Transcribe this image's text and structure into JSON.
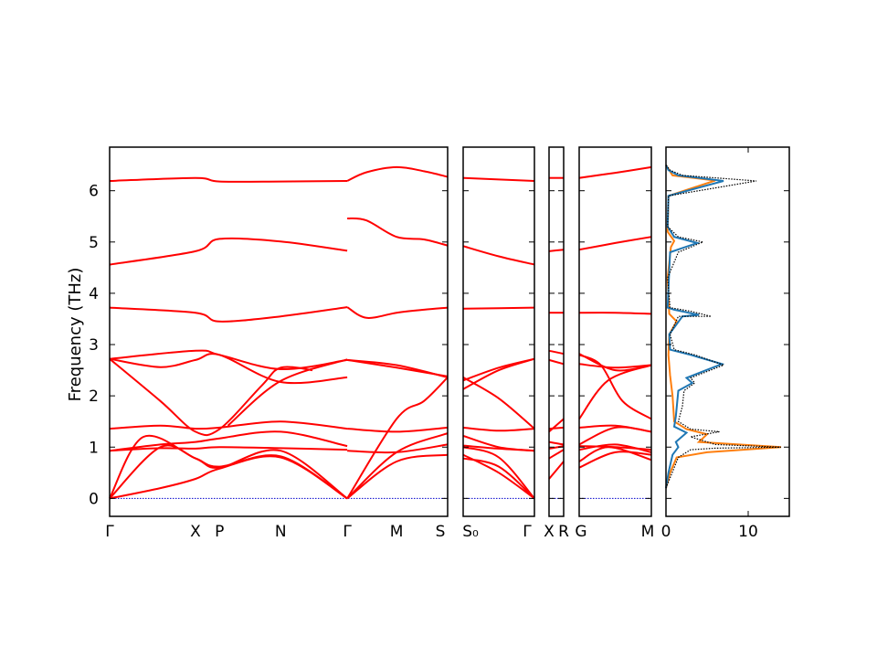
{
  "chart_data": {
    "type": "line",
    "ylabel": "Frequency (THz)",
    "ylim": [
      -0.35,
      6.85
    ],
    "yticks": [
      "0",
      "1",
      "2",
      "3",
      "4",
      "5",
      "6"
    ],
    "colors": {
      "bands": "#ff0000",
      "zero_line": "#0000cc",
      "dos_total": "#000000",
      "dos_a": "#1f77b4",
      "dos_b": "#ff7f0e"
    },
    "band_panels": [
      {
        "labels": [
          "Γ",
          "X",
          "P",
          "N",
          "Γ",
          "M",
          "S"
        ],
        "label_pos": [
          0,
          0.254,
          0.325,
          0.506,
          0.703,
          0.849,
          1
        ],
        "bands": [
          {
            "x": [
              0,
              0.254,
              0.325,
              0.506,
              0.703
            ],
            "y": [
              6.19,
              6.25,
              6.18,
              6.18,
              6.19
            ]
          },
          {
            "x": [
              0.703,
              0.76,
              0.849,
              0.93,
              1
            ],
            "y": [
              6.19,
              6.36,
              6.46,
              6.38,
              6.27
            ]
          },
          {
            "x": [
              0,
              0.254,
              0.325,
              0.506,
              0.703
            ],
            "y": [
              4.56,
              4.82,
              5.06,
              5.01,
              4.83
            ]
          },
          {
            "x": [
              0.703,
              0.76,
              0.849,
              0.93,
              1
            ],
            "y": [
              5.46,
              5.42,
              5.1,
              5.05,
              4.93
            ]
          },
          {
            "x": [
              0,
              0.254,
              0.325,
              0.506,
              0.703
            ],
            "y": [
              3.72,
              3.62,
              3.45,
              3.55,
              3.73
            ]
          },
          {
            "x": [
              0.703,
              0.76,
              0.849,
              0.93,
              1
            ],
            "y": [
              3.73,
              3.52,
              3.62,
              3.68,
              3.72
            ]
          },
          {
            "x": [
              0,
              0.254,
              0.325,
              0.506,
              0.703
            ],
            "y": [
              2.72,
              2.88,
              2.8,
              2.52,
              2.7
            ]
          },
          {
            "x": [
              0.703,
              0.849,
              1
            ],
            "y": [
              2.7,
              2.6,
              2.36
            ]
          },
          {
            "x": [
              0,
              0.15,
              0.254,
              0.325,
              0.506,
              0.703
            ],
            "y": [
              2.72,
              2.56,
              2.7,
              2.8,
              2.27,
              2.36
            ]
          },
          {
            "x": [
              0.703,
              0.849,
              1
            ],
            "y": [
              2.7,
              2.55,
              2.38
            ]
          },
          {
            "x": [
              0,
              0.15,
              0.254,
              0.325,
              0.45,
              0.506,
              0.6
            ],
            "y": [
              2.72,
              1.9,
              1.3,
              1.35,
              2.2,
              2.55,
              2.5
            ]
          },
          {
            "x": [
              0.35,
              0.506,
              0.703
            ],
            "y": [
              1.42,
              2.29,
              2.71
            ]
          },
          {
            "x": [
              0.703,
              0.849,
              0.93,
              1
            ],
            "y": [
              0.0,
              1.55,
              1.9,
              2.36
            ]
          },
          {
            "x": [
              0,
              0.15,
              0.254,
              0.325,
              0.506,
              0.703
            ],
            "y": [
              1.36,
              1.42,
              1.36,
              1.38,
              1.5,
              1.36
            ]
          },
          {
            "x": [
              0.703,
              0.849,
              1
            ],
            "y": [
              1.36,
              1.3,
              1.38
            ]
          },
          {
            "x": [
              0,
              0.15,
              0.254,
              0.325,
              0.506,
              0.703
            ],
            "y": [
              0.93,
              1.05,
              1.1,
              1.17,
              1.3,
              1.02
            ]
          },
          {
            "x": [
              0.703,
              0.849,
              1
            ],
            "y": [
              0.93,
              0.9,
              1.05
            ]
          },
          {
            "x": [
              0,
              0.15,
              0.254,
              0.325,
              0.506,
              0.703
            ],
            "y": [
              0.93,
              0.98,
              0.97,
              1.0,
              0.98,
              0.95
            ]
          },
          {
            "x": [
              0,
              0.1,
              0.254,
              0.325,
              0.506,
              0.703
            ],
            "y": [
              0.0,
              1.2,
              0.78,
              0.6,
              0.93,
              0.0
            ]
          },
          {
            "x": [
              0,
              0.15,
              0.254,
              0.325,
              0.506,
              0.703
            ],
            "y": [
              0.0,
              1.0,
              0.78,
              0.62,
              0.82,
              0.0
            ]
          },
          {
            "x": [
              0,
              0.15,
              0.254,
              0.325,
              0.506,
              0.703
            ],
            "y": [
              0.0,
              0.2,
              0.38,
              0.58,
              0.8,
              0.0
            ]
          },
          {
            "x": [
              0.703,
              0.849,
              1
            ],
            "y": [
              0.0,
              0.72,
              0.85
            ]
          },
          {
            "x": [
              0.703,
              0.849,
              1
            ],
            "y": [
              0.0,
              0.9,
              1.27
            ]
          }
        ]
      },
      {
        "labels": [
          "S₀",
          "Γ"
        ],
        "label_pos": [
          0,
          1
        ],
        "bands": [
          {
            "x": [
              0,
              1
            ],
            "y": [
              6.25,
              6.19
            ]
          },
          {
            "x": [
              0,
              0.5,
              1
            ],
            "y": [
              4.92,
              4.72,
              4.56
            ]
          },
          {
            "x": [
              0,
              1
            ],
            "y": [
              3.7,
              3.72
            ]
          },
          {
            "x": [
              0,
              0.5,
              1
            ],
            "y": [
              2.3,
              2.55,
              2.72
            ]
          },
          {
            "x": [
              0,
              0.5,
              1
            ],
            "y": [
              2.13,
              2.5,
              2.72
            ]
          },
          {
            "x": [
              0,
              0.5,
              1
            ],
            "y": [
              2.36,
              1.95,
              1.36
            ]
          },
          {
            "x": [
              0,
              0.5,
              1
            ],
            "y": [
              1.38,
              1.32,
              1.36
            ]
          },
          {
            "x": [
              0,
              0.5,
              1
            ],
            "y": [
              1.03,
              0.97,
              0.93
            ]
          },
          {
            "x": [
              0,
              0.5,
              1
            ],
            "y": [
              1.22,
              1.0,
              0.93
            ]
          },
          {
            "x": [
              0,
              0.5,
              1
            ],
            "y": [
              1.0,
              0.8,
              0.0
            ]
          },
          {
            "x": [
              0,
              0.5,
              1
            ],
            "y": [
              0.85,
              0.5,
              0.0
            ]
          },
          {
            "x": [
              0,
              0.5,
              1
            ],
            "y": [
              0.78,
              0.62,
              0.0
            ]
          }
        ]
      },
      {
        "labels": [
          "X",
          "R"
        ],
        "label_pos": [
          0,
          1
        ],
        "bands": [
          {
            "x": [
              0,
              1
            ],
            "y": [
              6.25,
              6.25
            ]
          },
          {
            "x": [
              0,
              1
            ],
            "y": [
              4.82,
              4.85
            ]
          },
          {
            "x": [
              0,
              1
            ],
            "y": [
              3.62,
              3.62
            ]
          },
          {
            "x": [
              0,
              1
            ],
            "y": [
              2.88,
              2.82
            ]
          },
          {
            "x": [
              0,
              1
            ],
            "y": [
              2.7,
              2.62
            ]
          },
          {
            "x": [
              0,
              1
            ],
            "y": [
              1.3,
              1.55
            ]
          },
          {
            "x": [
              0,
              1
            ],
            "y": [
              1.36,
              1.38
            ]
          },
          {
            "x": [
              0,
              1
            ],
            "y": [
              1.1,
              1.05
            ]
          },
          {
            "x": [
              0,
              1
            ],
            "y": [
              0.97,
              1.02
            ]
          },
          {
            "x": [
              0,
              1
            ],
            "y": [
              0.78,
              0.95
            ]
          },
          {
            "x": [
              0,
              1
            ],
            "y": [
              0.38,
              0.72
            ]
          }
        ]
      },
      {
        "labels": [
          "G",
          "M"
        ],
        "label_pos": [
          0,
          1
        ],
        "bands": [
          {
            "x": [
              0,
              0.5,
              1
            ],
            "y": [
              6.25,
              6.35,
              6.46
            ]
          },
          {
            "x": [
              0,
              0.5,
              1
            ],
            "y": [
              4.85,
              4.98,
              5.1
            ]
          },
          {
            "x": [
              0,
              0.5,
              1
            ],
            "y": [
              3.62,
              3.62,
              3.6
            ]
          },
          {
            "x": [
              0,
              0.5,
              1
            ],
            "y": [
              2.82,
              2.5,
              2.6
            ]
          },
          {
            "x": [
              0,
              0.5,
              1
            ],
            "y": [
              2.62,
              2.55,
              2.6
            ]
          },
          {
            "x": [
              0,
              0.3,
              0.6,
              1
            ],
            "y": [
              2.8,
              2.6,
              1.9,
              1.55
            ]
          },
          {
            "x": [
              0,
              0.4,
              1
            ],
            "y": [
              1.55,
              2.3,
              2.6
            ]
          },
          {
            "x": [
              0,
              0.5,
              1
            ],
            "y": [
              1.38,
              1.42,
              1.3
            ]
          },
          {
            "x": [
              0,
              0.5,
              1
            ],
            "y": [
              1.05,
              1.38,
              1.3
            ]
          },
          {
            "x": [
              0,
              0.5,
              1
            ],
            "y": [
              1.02,
              1.0,
              0.95
            ]
          },
          {
            "x": [
              0,
              0.5,
              1
            ],
            "y": [
              0.95,
              1.05,
              0.9
            ]
          },
          {
            "x": [
              0,
              0.4,
              1
            ],
            "y": [
              0.72,
              1.0,
              0.75
            ]
          },
          {
            "x": [
              0,
              0.5,
              1
            ],
            "y": [
              0.6,
              0.9,
              0.85
            ]
          }
        ]
      }
    ],
    "dos": {
      "xlim": [
        0,
        15
      ],
      "xticks": [
        0,
        10
      ],
      "total": [
        [
          0,
          0.2
        ],
        [
          0.5,
          0.4
        ],
        [
          1.5,
          0.8
        ],
        [
          3,
          0.95
        ],
        [
          6,
          0.98
        ],
        [
          14,
          1.0
        ],
        [
          6,
          1.05
        ],
        [
          3,
          1.2
        ],
        [
          6.5,
          1.3
        ],
        [
          3,
          1.35
        ],
        [
          1.5,
          1.5
        ],
        [
          2,
          1.8
        ],
        [
          2.2,
          2.1
        ],
        [
          3.5,
          2.25
        ],
        [
          3,
          2.35
        ],
        [
          7,
          2.6
        ],
        [
          3.5,
          2.8
        ],
        [
          1,
          2.9
        ],
        [
          0.5,
          3.2
        ],
        [
          1.5,
          3.55
        ],
        [
          5.5,
          3.55
        ],
        [
          3,
          3.65
        ],
        [
          0.5,
          3.72
        ],
        [
          0.2,
          4.3
        ],
        [
          1.5,
          4.8
        ],
        [
          4.5,
          5.0
        ],
        [
          1.5,
          5.1
        ],
        [
          0.2,
          5.3
        ],
        [
          0.3,
          5.9
        ],
        [
          11,
          6.19
        ],
        [
          2,
          6.3
        ],
        [
          0.5,
          6.4
        ],
        [
          0,
          6.5
        ]
      ],
      "series_a": [
        [
          0,
          0.2
        ],
        [
          0.3,
          0.5
        ],
        [
          0.8,
          0.85
        ],
        [
          1.5,
          1.0
        ],
        [
          1.2,
          1.1
        ],
        [
          2.5,
          1.28
        ],
        [
          1,
          1.4
        ],
        [
          1.2,
          1.6
        ],
        [
          1.5,
          2.1
        ],
        [
          3.2,
          2.25
        ],
        [
          2.5,
          2.35
        ],
        [
          6.8,
          2.62
        ],
        [
          3,
          2.8
        ],
        [
          0.5,
          2.9
        ],
        [
          0.4,
          3.2
        ],
        [
          2,
          3.55
        ],
        [
          4,
          3.58
        ],
        [
          1,
          3.68
        ],
        [
          0.2,
          3.72
        ],
        [
          0.5,
          4.8
        ],
        [
          3.8,
          4.98
        ],
        [
          1,
          5.1
        ],
        [
          0.2,
          5.3
        ],
        [
          0.3,
          5.9
        ],
        [
          7,
          6.19
        ],
        [
          1.5,
          6.3
        ],
        [
          0.3,
          6.4
        ],
        [
          0,
          6.5
        ]
      ],
      "series_b": [
        [
          0,
          0.2
        ],
        [
          0.5,
          0.5
        ],
        [
          1.3,
          0.8
        ],
        [
          5,
          0.9
        ],
        [
          14,
          1.0
        ],
        [
          4,
          1.1
        ],
        [
          5,
          1.25
        ],
        [
          2.5,
          1.35
        ],
        [
          1,
          1.5
        ],
        [
          0.8,
          2.0
        ],
        [
          0.5,
          2.4
        ],
        [
          0.3,
          2.8
        ],
        [
          0.4,
          3.2
        ],
        [
          1.3,
          3.45
        ],
        [
          0.4,
          3.6
        ],
        [
          0.2,
          4.3
        ],
        [
          0.6,
          4.9
        ],
        [
          1,
          5.02
        ],
        [
          0.2,
          5.2
        ],
        [
          0.3,
          5.9
        ],
        [
          6,
          6.2
        ],
        [
          0.8,
          6.3
        ],
        [
          0,
          6.5
        ]
      ]
    }
  }
}
